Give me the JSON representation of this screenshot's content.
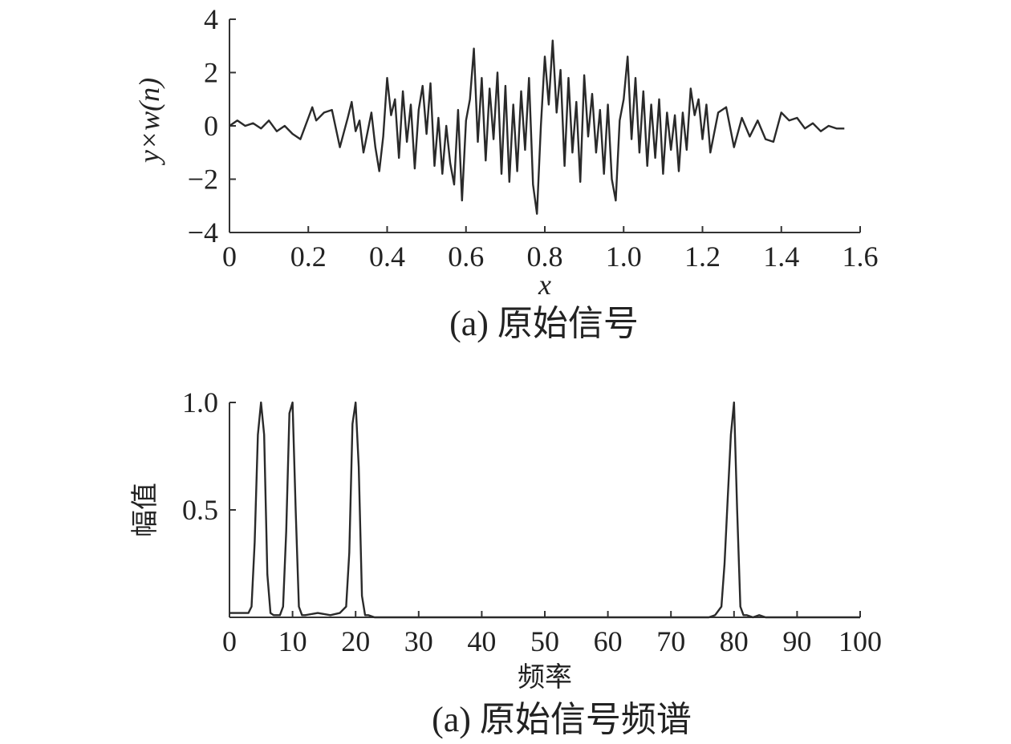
{
  "chart_data": [
    {
      "type": "line",
      "title": "",
      "caption": "(a) 原始信号",
      "xlabel": "x",
      "ylabel": "y×w(n)",
      "xlim": [
        0,
        1.6
      ],
      "ylim": [
        -4,
        4
      ],
      "x_ticks": [
        "0",
        "0.2",
        "0.4",
        "0.6",
        "0.8",
        "1.0",
        "1.2",
        "1.4",
        "1.6"
      ],
      "y_ticks": [
        "4",
        "2",
        "0",
        "−2",
        "−4"
      ],
      "grid": false,
      "series": [
        {
          "x": [
            0,
            0.02,
            0.04,
            0.06,
            0.08,
            0.1,
            0.12,
            0.14,
            0.16,
            0.18,
            0.2,
            0.21,
            0.22,
            0.24,
            0.26,
            0.28,
            0.3,
            0.31,
            0.32,
            0.33,
            0.34,
            0.36,
            0.37,
            0.38,
            0.39,
            0.4,
            0.41,
            0.42,
            0.43,
            0.44,
            0.45,
            0.46,
            0.47,
            0.48,
            0.49,
            0.5,
            0.51,
            0.52,
            0.53,
            0.54,
            0.55,
            0.56,
            0.57,
            0.58,
            0.59,
            0.6,
            0.61,
            0.62,
            0.63,
            0.64,
            0.65,
            0.66,
            0.67,
            0.68,
            0.69,
            0.7,
            0.71,
            0.72,
            0.73,
            0.74,
            0.75,
            0.76,
            0.77,
            0.78,
            0.79,
            0.8,
            0.81,
            0.82,
            0.83,
            0.84,
            0.85,
            0.86,
            0.87,
            0.88,
            0.89,
            0.9,
            0.91,
            0.92,
            0.93,
            0.94,
            0.95,
            0.96,
            0.97,
            0.98,
            0.99,
            1.0,
            1.01,
            1.02,
            1.03,
            1.04,
            1.05,
            1.06,
            1.07,
            1.08,
            1.09,
            1.1,
            1.11,
            1.12,
            1.13,
            1.14,
            1.15,
            1.16,
            1.17,
            1.18,
            1.19,
            1.2,
            1.21,
            1.22,
            1.24,
            1.26,
            1.28,
            1.3,
            1.32,
            1.34,
            1.36,
            1.38,
            1.4,
            1.42,
            1.44,
            1.46,
            1.48,
            1.5,
            1.52,
            1.54,
            1.56
          ],
          "values": [
            0,
            0.2,
            0.0,
            0.1,
            -0.1,
            0.2,
            -0.2,
            0.0,
            -0.3,
            -0.5,
            0.3,
            0.7,
            0.2,
            0.5,
            0.6,
            -0.8,
            0.3,
            0.9,
            -0.2,
            0.2,
            -1.0,
            0.5,
            -0.8,
            -1.7,
            -0.4,
            1.8,
            0.4,
            1.0,
            -1.2,
            1.3,
            -0.6,
            0.8,
            -1.6,
            0.6,
            1.5,
            -0.3,
            1.6,
            -1.5,
            0.3,
            -1.8,
            0.0,
            -1.4,
            -2.2,
            0.6,
            -2.8,
            0.2,
            1.0,
            2.9,
            -0.6,
            1.8,
            -1.3,
            1.4,
            -0.5,
            2.0,
            -1.8,
            1.5,
            -2.1,
            0.8,
            -1.7,
            1.3,
            -0.9,
            1.8,
            -2.2,
            -3.3,
            0.0,
            2.6,
            0.8,
            3.2,
            0.5,
            2.1,
            -1.5,
            1.8,
            -1.0,
            0.9,
            -2.1,
            1.9,
            -0.4,
            1.2,
            -1.0,
            0.6,
            -1.8,
            0.8,
            -2.0,
            -2.8,
            0.2,
            1.0,
            2.6,
            -0.5,
            1.8,
            -1.0,
            1.3,
            -1.5,
            0.8,
            -1.2,
            1.0,
            -1.8,
            0.5,
            -0.9,
            0.4,
            -1.7,
            0.5,
            -0.9,
            1.4,
            0.4,
            1.0,
            -0.5,
            0.8,
            -1.0,
            0.5,
            0.7,
            -0.8,
            0.3,
            -0.4,
            0.2,
            -0.5,
            -0.6,
            0.5,
            0.2,
            0.3,
            -0.1,
            0.1,
            -0.2,
            0.0,
            -0.1,
            -0.1
          ]
        }
      ]
    },
    {
      "type": "line",
      "title": "",
      "caption": "(a) 原始信号频谱",
      "xlabel": "频率",
      "ylabel": "幅值",
      "xlim": [
        0,
        100
      ],
      "ylim": [
        0,
        1.0
      ],
      "x_ticks": [
        "0",
        "10",
        "20",
        "30",
        "40",
        "50",
        "60",
        "70",
        "80",
        "90",
        "100"
      ],
      "y_ticks": [
        "1.0",
        "0.5"
      ],
      "grid": false,
      "series": [
        {
          "x": [
            0,
            3,
            3.5,
            4,
            4.5,
            5,
            5.5,
            6,
            6.5,
            7,
            8,
            8.5,
            9,
            9.5,
            10,
            10.5,
            11,
            11.5,
            12,
            14,
            16,
            17.5,
            18.5,
            19,
            19.5,
            20,
            20.5,
            21,
            21.5,
            22,
            23,
            76,
            77,
            78,
            78.5,
            79,
            79.5,
            80,
            80.5,
            81,
            81.5,
            82,
            83,
            84,
            85,
            100
          ],
          "values": [
            0.02,
            0.02,
            0.05,
            0.35,
            0.85,
            1.0,
            0.85,
            0.2,
            0.02,
            0.01,
            0.01,
            0.05,
            0.4,
            0.95,
            1.0,
            0.5,
            0.05,
            0.01,
            0.01,
            0.02,
            0.01,
            0.02,
            0.05,
            0.3,
            0.9,
            1.0,
            0.7,
            0.1,
            0.01,
            0.01,
            0.0,
            0.0,
            0.01,
            0.05,
            0.25,
            0.55,
            0.85,
            1.0,
            0.5,
            0.05,
            0.01,
            0.01,
            0.0,
            0.01,
            0.0,
            0.0
          ]
        }
      ]
    }
  ]
}
